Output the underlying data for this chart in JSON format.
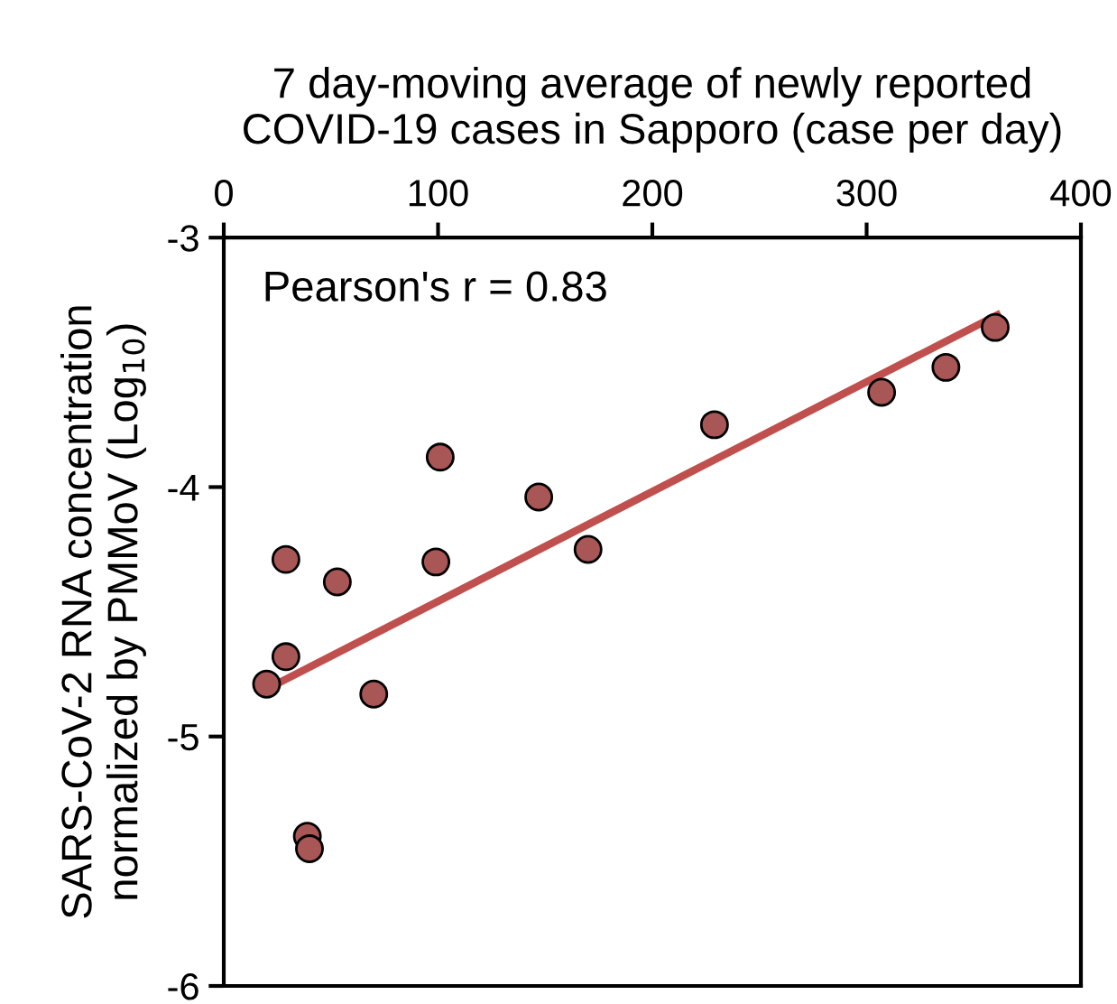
{
  "chart_data": {
    "type": "scatter",
    "xlabel": "7 day-moving average of newly reported\nCOVID-19 cases in Sapporo (case per day)",
    "ylabel": "SARS-CoV-2 RNA concentration\nnormalized by PMMoV (Log$_{10}$)",
    "xlim": [
      0,
      400
    ],
    "xticks": [
      0,
      100,
      200,
      300,
      400
    ],
    "ylim": [
      -6,
      -3
    ],
    "yticks": [
      -6,
      -5,
      -4,
      -3
    ],
    "grid": false,
    "legend": false,
    "annotations": [
      "Pearson's r = 0.83"
    ],
    "series": [
      {
        "marker": "circle",
        "color": "#a85656",
        "x": [
          20,
          29,
          29,
          53,
          70,
          99,
          101,
          147,
          170,
          229,
          307,
          337,
          360,
          39,
          40
        ],
        "values": [
          -4.79,
          -4.68,
          -4.29,
          -4.38,
          -4.83,
          -4.3,
          -3.88,
          -4.04,
          -4.25,
          -3.75,
          -3.62,
          -3.52,
          -3.36,
          -5.4,
          -5.45
        ]
      },
      {
        "type": "line",
        "marker": "none",
        "color": "#c0504d",
        "line_style": "solid",
        "x": [
          20,
          361
        ],
        "values": [
          -4.81,
          -3.31
        ]
      }
    ]
  }
}
